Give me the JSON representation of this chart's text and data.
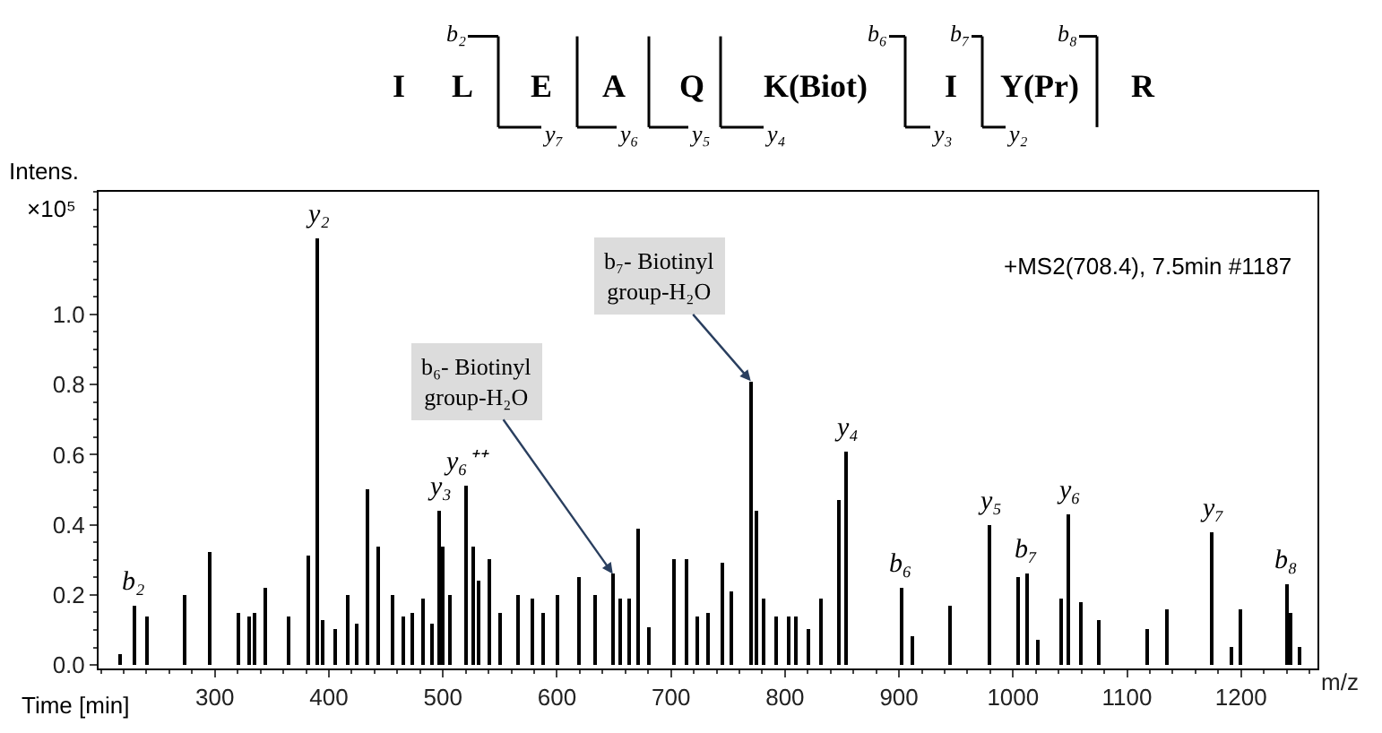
{
  "chart_data": {
    "type": "bar",
    "xlabel": "m/z",
    "x": [
      217,
      229,
      240,
      273,
      295,
      320,
      330,
      335,
      345,
      364,
      382,
      390,
      395,
      405,
      416,
      424,
      434,
      444,
      456,
      466,
      473,
      483,
      490,
      497,
      500,
      507,
      520,
      527,
      532,
      541,
      551,
      566,
      578,
      588,
      600,
      620,
      634,
      649,
      656,
      663,
      672,
      681,
      702,
      713,
      723,
      732,
      745,
      753,
      770,
      775,
      782,
      792,
      803,
      810,
      820,
      832,
      847,
      853,
      902,
      912,
      945,
      979,
      1005,
      1012,
      1022,
      1042,
      1049,
      1060,
      1075,
      1118,
      1135,
      1175,
      1192,
      1200,
      1240,
      1243,
      1251
    ],
    "values": [
      0.03,
      0.17,
      0.14,
      0.2,
      0.32,
      0.15,
      0.14,
      0.15,
      0.22,
      0.14,
      0.31,
      1.216,
      0.13,
      0.1,
      0.2,
      0.12,
      0.5,
      0.34,
      0.2,
      0.14,
      0.15,
      0.19,
      0.12,
      0.44,
      0.34,
      0.2,
      0.51,
      0.34,
      0.24,
      0.3,
      0.15,
      0.2,
      0.19,
      0.15,
      0.2,
      0.25,
      0.2,
      0.26,
      0.19,
      0.19,
      0.39,
      0.11,
      0.3,
      0.3,
      0.14,
      0.15,
      0.29,
      0.21,
      0.81,
      0.44,
      0.19,
      0.14,
      0.14,
      0.14,
      0.1,
      0.19,
      0.47,
      0.61,
      0.22,
      0.08,
      0.17,
      0.4,
      0.25,
      0.26,
      0.07,
      0.19,
      0.43,
      0.18,
      0.13,
      0.1,
      0.16,
      0.38,
      0.05,
      0.16,
      0.23,
      0.15,
      0.05
    ],
    "color": "#000000",
    "xlim": [
      198,
      1267
    ],
    "xticks": [
      300,
      400,
      500,
      600,
      700,
      800,
      900,
      1000,
      1100,
      1200
    ],
    "ylim": [
      -0.01,
      1.35
    ],
    "yticks": [
      {
        "value": 0,
        "label": "0.0"
      },
      {
        "value": 0.2,
        "label": "0.2"
      },
      {
        "value": 0.4,
        "label": "0.4"
      },
      {
        "value": 0.6,
        "label": "0.6"
      },
      {
        "value": 0.8,
        "label": "0.8"
      },
      {
        "value": 1.0,
        "label": "1.0"
      }
    ],
    "annotations": [
      "I",
      "L",
      "E",
      "A",
      "Q",
      "K(Biot)",
      "I",
      "Y(Pr)",
      "R",
      "b₂",
      "y₇",
      "y₆",
      "y₅",
      "y₄",
      "b₆",
      "y₃",
      "b₇",
      "y₂",
      "b₈",
      "Intens.",
      "×10⁵",
      "Time [min]",
      "+MS2(708.4), 7.5min #1187",
      {
        "text": "b₂",
        "x": 229,
        "y": 0.17
      },
      {
        "text": "y₂",
        "x": 390,
        "y": 1.216
      },
      {
        "text": "y₃",
        "x": 497,
        "y": 0.44
      },
      {
        "text": "y₆⁺⁺",
        "x": 520,
        "y": 0.51
      },
      {
        "text": "y₄",
        "x": 853,
        "y": 0.61
      },
      {
        "text": "b₆",
        "x": 902,
        "y": 0.22
      },
      {
        "text": "y₅",
        "x": 979,
        "y": 0.4
      },
      {
        "text": "b₇",
        "x": 1012,
        "y": 0.26
      },
      {
        "text": "y₆",
        "x": 1049,
        "y": 0.43
      },
      {
        "text": "y₇",
        "x": 1175,
        "y": 0.38
      },
      {
        "text": "b₈",
        "x": 1240,
        "y": 0.23
      },
      {
        "text": "b₆- Biotinyl\ngroup-H₂O",
        "x": 649,
        "y": 0.26
      },
      {
        "text": "b₇- Biotinyl\ngroup-H₂O",
        "x": 770,
        "y": 0.81
      }
    ]
  }
}
